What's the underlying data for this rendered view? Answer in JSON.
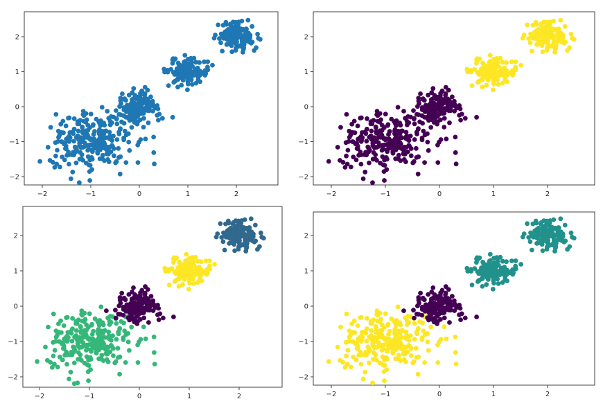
{
  "chart_data": [
    {
      "type": "scatter",
      "title": "",
      "xlabel": "",
      "ylabel": "",
      "xlim": [
        -2.3,
        2.9
      ],
      "ylim": [
        -2.1,
        2.5
      ],
      "xticks": [
        "−2",
        "−1",
        "0",
        "1",
        "2"
      ],
      "yticks": [
        "2",
        "1",
        "0",
        "−1",
        "−2"
      ],
      "xtick_values": [
        -2,
        -1,
        0,
        1,
        2
      ],
      "ytick_values": [
        2,
        1,
        0,
        -1,
        -2
      ],
      "grid": false,
      "seed": 7,
      "clusters": [
        {
          "center": [
            -1.0,
            -1.0
          ],
          "spread": 0.42,
          "count": 260,
          "color": "#1f77b4"
        },
        {
          "center": [
            0.0,
            0.0
          ],
          "spread": 0.22,
          "count": 140,
          "color": "#1f77b4"
        },
        {
          "center": [
            1.0,
            1.0
          ],
          "spread": 0.2,
          "count": 140,
          "color": "#1f77b4"
        },
        {
          "center": [
            2.0,
            2.0
          ],
          "spread": 0.2,
          "count": 140,
          "color": "#1f77b4"
        }
      ]
    },
    {
      "type": "scatter",
      "title": "",
      "xlabel": "",
      "ylabel": "",
      "xlim": [
        -2.3,
        2.9
      ],
      "ylim": [
        -2.1,
        2.5
      ],
      "xticks": [
        "−2",
        "−1",
        "0",
        "1",
        "2"
      ],
      "yticks": [
        "2",
        "1",
        "0",
        "−1",
        "−2"
      ],
      "xtick_values": [
        -2,
        -1,
        0,
        1,
        2
      ],
      "ytick_values": [
        2,
        1,
        0,
        -1,
        -2
      ],
      "grid": false,
      "seed": 7,
      "clusters": [
        {
          "center": [
            -1.0,
            -1.0
          ],
          "spread": 0.42,
          "count": 260,
          "color": "#440154"
        },
        {
          "center": [
            0.0,
            0.0
          ],
          "spread": 0.22,
          "count": 140,
          "color": "#440154"
        },
        {
          "center": [
            1.0,
            1.0
          ],
          "spread": 0.2,
          "count": 140,
          "color": "#fde725"
        },
        {
          "center": [
            2.0,
            2.0
          ],
          "spread": 0.2,
          "count": 140,
          "color": "#fde725"
        }
      ]
    },
    {
      "type": "scatter",
      "title": "",
      "xlabel": "",
      "ylabel": "",
      "xlim": [
        -2.3,
        2.9
      ],
      "ylim": [
        -2.1,
        2.5
      ],
      "xticks": [
        "−2",
        "−1",
        "0",
        "1",
        "2"
      ],
      "yticks": [
        "2",
        "1",
        "0",
        "−1",
        "−2"
      ],
      "xtick_values": [
        -2,
        -1,
        0,
        1,
        2
      ],
      "ytick_values": [
        2,
        1,
        0,
        -1,
        -2
      ],
      "grid": false,
      "seed": 7,
      "clusters": [
        {
          "center": [
            -1.0,
            -1.0
          ],
          "spread": 0.42,
          "count": 260,
          "color": "#35b779"
        },
        {
          "center": [
            0.0,
            0.0
          ],
          "spread": 0.22,
          "count": 140,
          "color": "#440154"
        },
        {
          "center": [
            1.0,
            1.0
          ],
          "spread": 0.2,
          "count": 140,
          "color": "#fde725"
        },
        {
          "center": [
            2.0,
            2.0
          ],
          "spread": 0.2,
          "count": 140,
          "color": "#31688e"
        }
      ]
    },
    {
      "type": "scatter",
      "title": "",
      "xlabel": "",
      "ylabel": "",
      "xlim": [
        -2.3,
        2.9
      ],
      "ylim": [
        -2.1,
        2.5
      ],
      "xticks": [
        "−2",
        "−1",
        "0",
        "1",
        "2"
      ],
      "yticks": [
        "2",
        "1",
        "0",
        "−1",
        "−2"
      ],
      "xtick_values": [
        -2,
        -1,
        0,
        1,
        2
      ],
      "ytick_values": [
        2,
        1,
        0,
        -1,
        -2
      ],
      "grid": false,
      "seed": 7,
      "clusters": [
        {
          "center": [
            -1.0,
            -1.0
          ],
          "spread": 0.42,
          "count": 260,
          "color": "#fde725"
        },
        {
          "center": [
            0.0,
            0.0
          ],
          "spread": 0.22,
          "count": 140,
          "color": "#440154"
        },
        {
          "center": [
            1.0,
            1.0
          ],
          "spread": 0.2,
          "count": 140,
          "color": "#21918c"
        },
        {
          "center": [
            2.0,
            2.0
          ],
          "spread": 0.2,
          "count": 140,
          "color": "#21918c"
        }
      ]
    }
  ]
}
